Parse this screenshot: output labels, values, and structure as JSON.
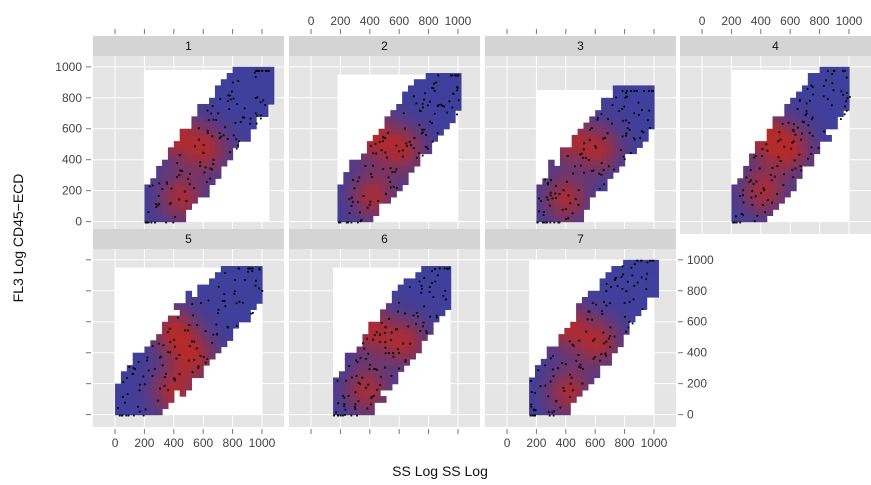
{
  "chart_data": {
    "type": "heatmap",
    "layout": "lattice-panels",
    "xlabel": "SS Log SS Log",
    "ylabel": "FL3 Log CD45−ECD",
    "xlim": [
      -150,
      1150
    ],
    "ylim": [
      -80,
      1070
    ],
    "x_ticks": [
      0,
      200,
      400,
      600,
      800,
      1000
    ],
    "x_tick_labels": [
      "0",
      "200",
      "400",
      "600",
      "800",
      "1000"
    ],
    "y_ticks": [
      0,
      200,
      400,
      600,
      800,
      1000
    ],
    "y_tick_labels": [
      "0",
      "200",
      "400",
      "600",
      "800",
      "1000"
    ],
    "colors": {
      "panel_bg": "#e5e5e5",
      "strip_bg": "#d4d4d4",
      "density_low": "#3f3f9c",
      "density_high": "#b52a2a",
      "points": "#000000"
    },
    "panels": [
      {
        "label": "1",
        "xrange": [
          200,
          1050
        ],
        "yrange": [
          0,
          980
        ],
        "peaks": [
          {
            "x": 400,
            "y": 560
          },
          {
            "x": 620,
            "y": 470
          },
          {
            "x": 450,
            "y": 160
          }
        ]
      },
      {
        "label": "2",
        "xrange": [
          180,
          1000
        ],
        "yrange": [
          0,
          950
        ],
        "peaks": [
          {
            "x": 400,
            "y": 560
          },
          {
            "x": 620,
            "y": 470
          },
          {
            "x": 420,
            "y": 170
          }
        ]
      },
      {
        "label": "3",
        "xrange": [
          200,
          1000
        ],
        "yrange": [
          0,
          850
        ],
        "peaks": [
          {
            "x": 380,
            "y": 550
          },
          {
            "x": 620,
            "y": 470
          },
          {
            "x": 400,
            "y": 150
          }
        ]
      },
      {
        "label": "4",
        "xrange": [
          200,
          1000
        ],
        "yrange": [
          0,
          980
        ],
        "peaks": [
          {
            "x": 420,
            "y": 560
          },
          {
            "x": 600,
            "y": 470
          },
          {
            "x": 420,
            "y": 200
          }
        ]
      },
      {
        "label": "5",
        "xrange": [
          0,
          1000
        ],
        "yrange": [
          0,
          950
        ],
        "peaks": [
          {
            "x": 400,
            "y": 550
          },
          {
            "x": 530,
            "y": 380
          },
          {
            "x": 400,
            "y": 150
          }
        ]
      },
      {
        "label": "6",
        "xrange": [
          150,
          950
        ],
        "yrange": [
          0,
          950
        ],
        "peaks": [
          {
            "x": 400,
            "y": 550
          },
          {
            "x": 640,
            "y": 470
          },
          {
            "x": 380,
            "y": 160
          }
        ]
      },
      {
        "label": "7",
        "xrange": [
          150,
          1000
        ],
        "yrange": [
          0,
          1000
        ],
        "peaks": [
          {
            "x": 400,
            "y": 580
          },
          {
            "x": 620,
            "y": 470
          },
          {
            "x": 420,
            "y": 150
          }
        ]
      }
    ]
  }
}
